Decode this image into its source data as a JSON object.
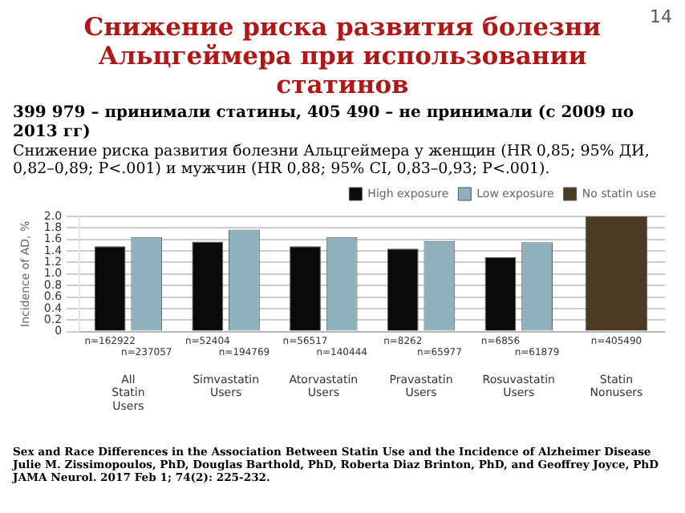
{
  "chart_data": {
    "type": "bar",
    "title": "Снижение риска развития болезни Альцгеймера при использовании статинов",
    "subtitle": "399 979 – принимали статины, 405 490 – не принимали  (с 2009 по 2013 гг)",
    "ylabel": "Incidence of AD, %",
    "categories": [
      "All Statin Users",
      "Simvastatin Users",
      "Atorvastatin Users",
      "Pravastatin Users",
      "Rosuvastatin Users",
      "Statin Nonusers"
    ],
    "series": [
      {
        "name": "High exposure",
        "color": "#0a0a0a",
        "values": [
          1.48,
          1.56,
          1.48,
          1.44,
          1.29,
          null
        ]
      },
      {
        "name": "Low exposure",
        "color": "#8fb0bd",
        "values": [
          1.64,
          1.77,
          1.64,
          1.57,
          1.55,
          null
        ]
      },
      {
        "name": "No statin use",
        "color": "#4a3b22",
        "values": [
          null,
          null,
          null,
          null,
          null,
          2.0
        ]
      }
    ],
    "ylim": [
      0,
      2.0
    ],
    "yticks": [
      0,
      0.2,
      0.4,
      0.6,
      0.8,
      {
        "value": 1.0,
        "label": "1.0"
      },
      1.2,
      1.4,
      1.6,
      1.8,
      {
        "value": 2.0,
        "label": "2.0"
      }
    ],
    "grid": "y",
    "legend": "top right",
    "annotations": [
      "14",
      "Снижение риска развития болезни Альцгеймера у женщин (HR 0,85; 95% ДИ, 0,82–0,89; P<.001) и мужчин (HR 0,88; 95% CI, 0,83–0,93; P<.001).",
      "n=162922",
      "n=237057",
      "n=52404",
      "n=194769",
      "n=56517",
      "n=140444",
      "n=8262",
      "n=65977",
      "n=6856",
      "n=61879",
      "n=405490",
      "Sex and Race Differences in the Association Between Statin Use and the Incidence of Alzheimer Disease Julie M. Zissimopoulos, PhD, Douglas Barthold, PhD, Roberta Diaz Brinton, PhD, and Geoffrey Joyce, PhD    JAMA Neurol. 2017 Feb 1; 74(2): 225-232."
    ]
  }
}
